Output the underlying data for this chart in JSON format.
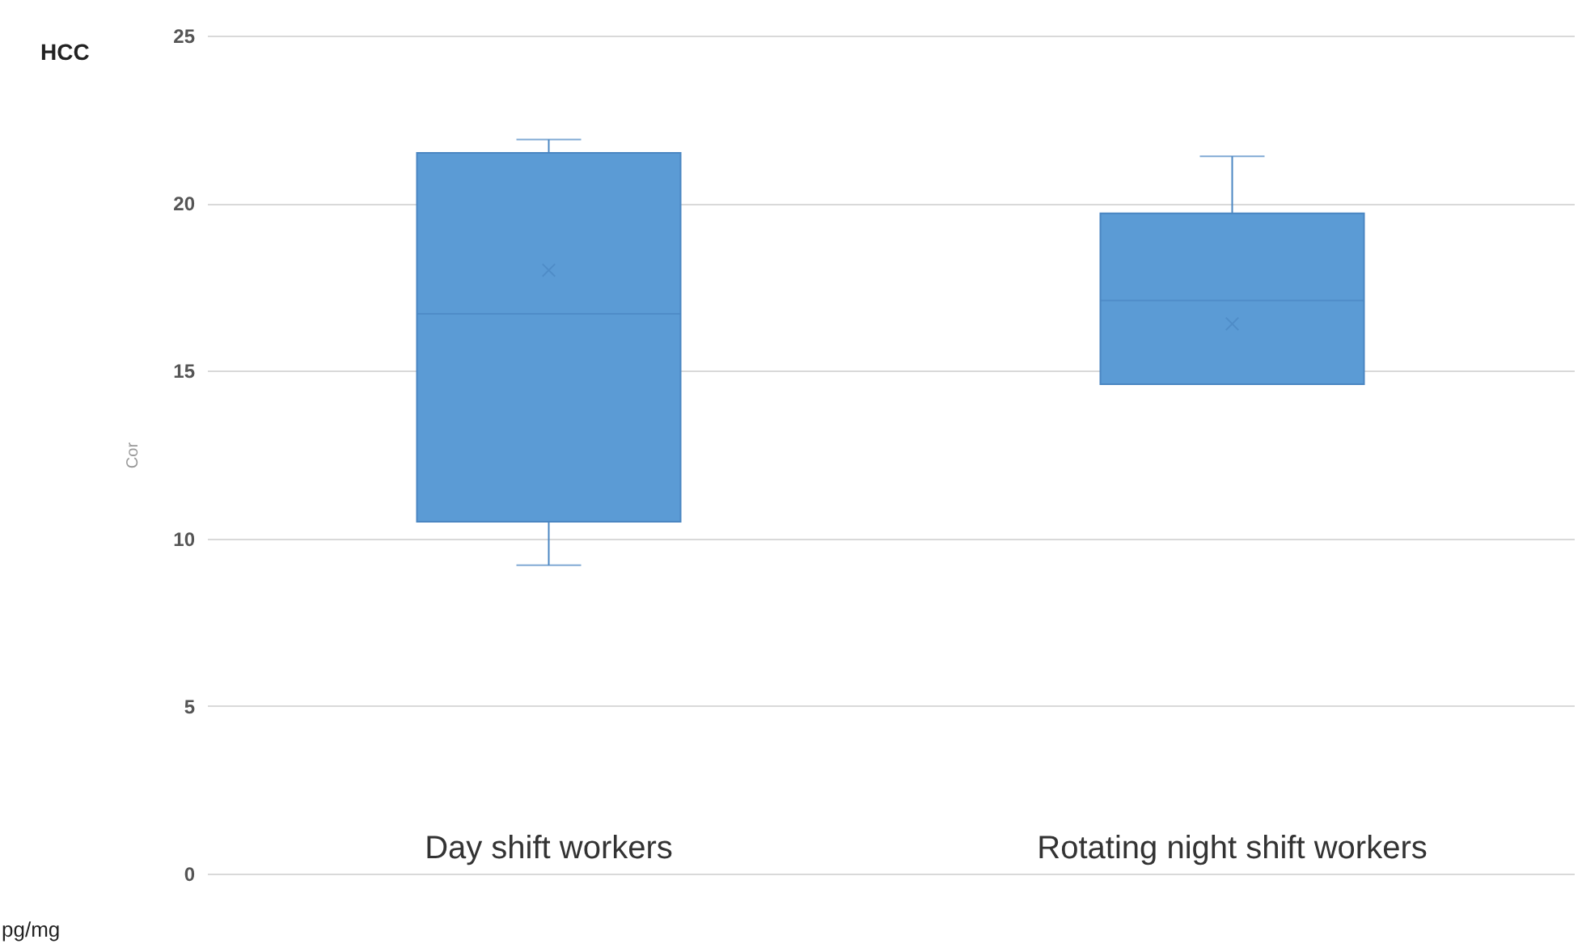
{
  "chart_data": {
    "type": "box",
    "ylabel": "Cor",
    "annotations": [
      "HCC",
      "pg/mg"
    ],
    "categories": [
      "Day shift  workers",
      "Rotating night shift workers"
    ],
    "boxes": [
      {
        "low": 9.2,
        "q1": 10.5,
        "median": 16.7,
        "q3": 21.5,
        "high": 21.9,
        "mean": 18.0
      },
      {
        "low": 14.6,
        "q1": 14.6,
        "median": 17.1,
        "q3": 19.7,
        "high": 21.4,
        "mean": 16.4
      }
    ],
    "color": "#5b9bd5",
    "ylim": [
      0,
      25
    ],
    "yticks": [
      0,
      5,
      10,
      15,
      20,
      25
    ],
    "grid": "y"
  }
}
